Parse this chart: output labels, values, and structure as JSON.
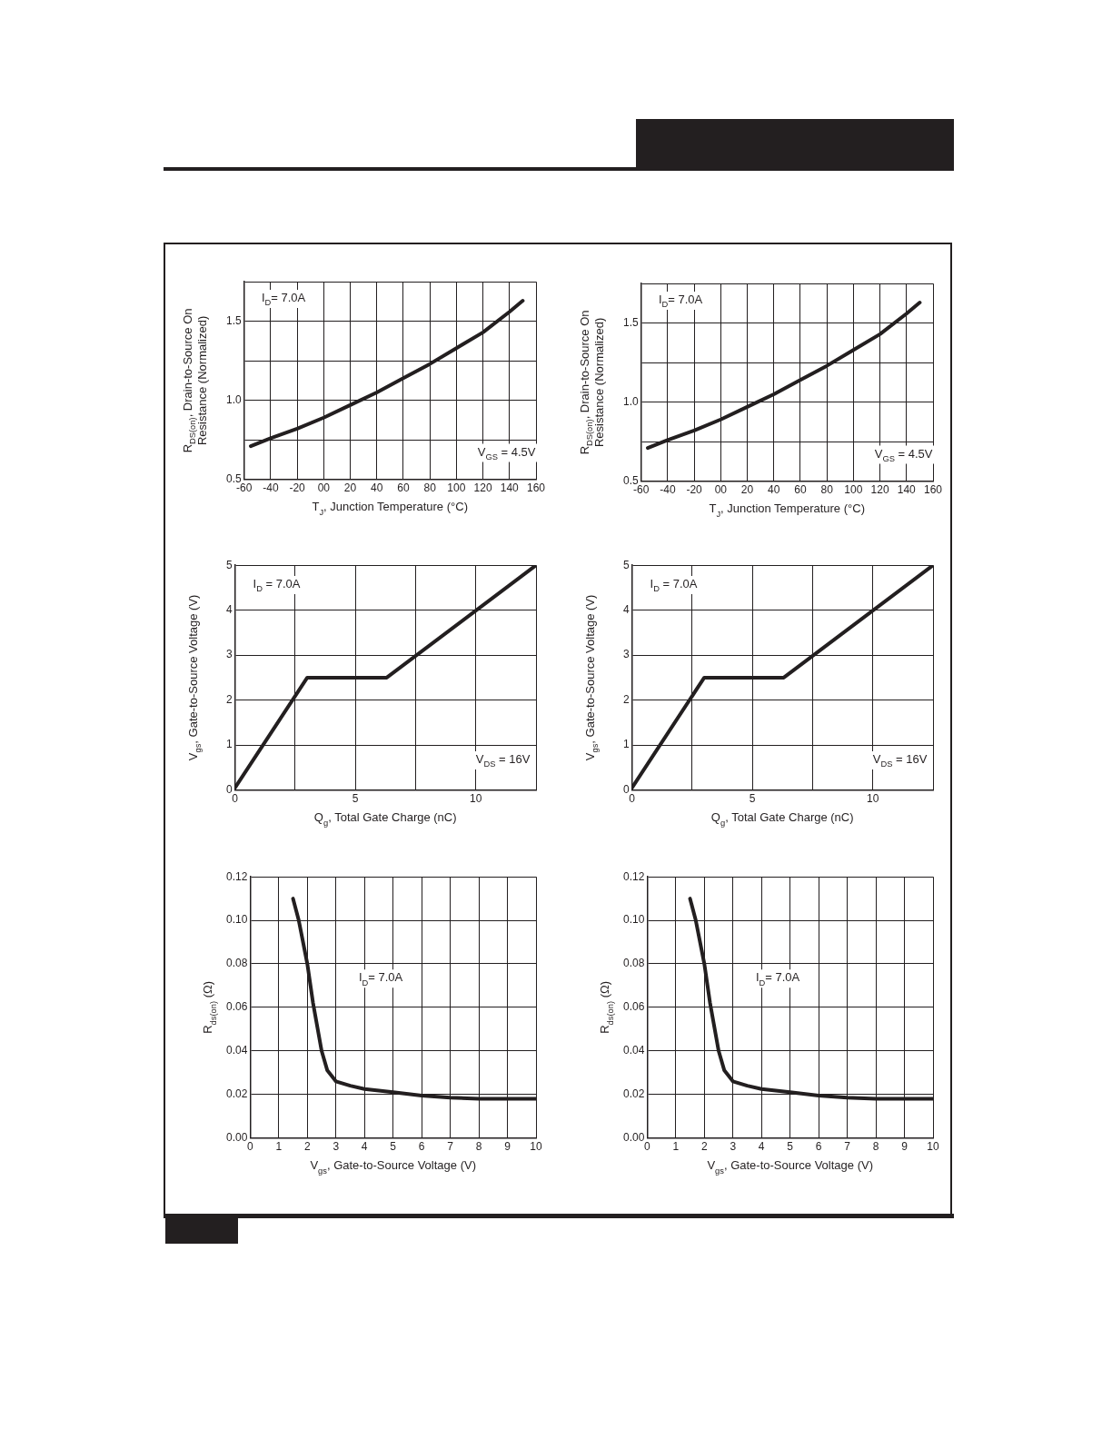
{
  "chart_data": [
    {
      "type": "line",
      "xlabel": "T$_{J}$, Junction Temperature (°C)",
      "ylabel": "R$_{DS(on)}$, Drain-to-Source On Resistance (Normalized)",
      "annotations": [
        "I$_{D}$= 7.0A",
        "V$_{GS}$ = 4.5V"
      ],
      "x": [
        -55,
        -40,
        -20,
        0,
        20,
        40,
        60,
        80,
        100,
        120,
        140,
        150
      ],
      "series": [
        {
          "color": "#231f20",
          "values": [
            0.71,
            0.76,
            0.82,
            0.89,
            0.97,
            1.05,
            1.14,
            1.23,
            1.33,
            1.43,
            1.56,
            1.63
          ]
        }
      ],
      "xlim": [
        -60,
        160
      ],
      "xticks": [
        -60,
        -40,
        -20,
        {
          "value": 0,
          "label": "00"
        },
        20,
        40,
        60,
        80,
        100,
        120,
        140,
        160
      ],
      "ylim": [
        0.5,
        1.75
      ],
      "yticks": [
        0.5,
        {
          "value": 0.75,
          "label": null
        },
        {
          "value": 1,
          "label": "1.0"
        },
        {
          "value": 1.25,
          "label": null
        },
        1.5,
        {
          "value": 1.75,
          "label": null
        }
      ],
      "grid": true
    },
    {
      "type": "line",
      "xlabel": "T$_{J}$, Junction Temperature (°C)",
      "ylabel": "R$_{DS(on)}$, Drain-to-Source On Resistance (Normalized)",
      "annotations": [
        "I$_{D}$= 7.0A",
        "V$_{GS}$ = 4.5V"
      ],
      "x": [
        -55,
        -40,
        -20,
        0,
        20,
        40,
        60,
        80,
        100,
        120,
        140,
        150
      ],
      "series": [
        {
          "color": "#231f20",
          "values": [
            0.71,
            0.76,
            0.82,
            0.89,
            0.97,
            1.05,
            1.14,
            1.23,
            1.33,
            1.43,
            1.56,
            1.63
          ]
        }
      ],
      "xlim": [
        -60,
        160
      ],
      "xticks": [
        -60,
        -40,
        -20,
        {
          "value": 0,
          "label": "00"
        },
        20,
        40,
        60,
        80,
        100,
        120,
        140,
        160
      ],
      "ylim": [
        0.5,
        1.75
      ],
      "yticks": [
        0.5,
        {
          "value": 0.75,
          "label": null
        },
        {
          "value": 1,
          "label": "1.0"
        },
        {
          "value": 1.25,
          "label": null
        },
        1.5,
        {
          "value": 1.75,
          "label": null
        }
      ],
      "grid": true
    },
    {
      "type": "line",
      "xlabel": "Q$_{g}$, Total Gate Charge (nC)",
      "ylabel": "V$_{gs}$, Gate-to-Source Voltage (V)",
      "annotations": [
        "I$_{D}$ = 7.0A",
        "V$_{DS}$ = 16V"
      ],
      "x": [
        0,
        3,
        6.3,
        12.5
      ],
      "series": [
        {
          "color": "#231f20",
          "values": [
            0.05,
            2.5,
            2.5,
            5
          ]
        }
      ],
      "xlim": [
        0,
        12.5
      ],
      "xticks": [
        0,
        {
          "value": 2.5,
          "label": null
        },
        5,
        {
          "value": 7.5,
          "label": null
        },
        10,
        {
          "value": 12.5,
          "label": null
        }
      ],
      "ylim": [
        0,
        5
      ],
      "yticks": [
        0,
        1,
        2,
        3,
        4,
        5
      ],
      "grid": true
    },
    {
      "type": "line",
      "xlabel": "Q$_{g}$, Total Gate Charge (nC)",
      "ylabel": "V$_{gs}$, Gate-to-Source Voltage (V)",
      "annotations": [
        "I$_{D}$ = 7.0A",
        "V$_{DS}$ = 16V"
      ],
      "x": [
        0,
        3,
        6.3,
        12.5
      ],
      "series": [
        {
          "color": "#231f20",
          "values": [
            0.05,
            2.5,
            2.5,
            5
          ]
        }
      ],
      "xlim": [
        0,
        12.5
      ],
      "xticks": [
        0,
        {
          "value": 2.5,
          "label": null
        },
        5,
        {
          "value": 7.5,
          "label": null
        },
        10,
        {
          "value": 12.5,
          "label": null
        }
      ],
      "ylim": [
        0,
        5
      ],
      "yticks": [
        0,
        1,
        2,
        3,
        4,
        5
      ],
      "grid": true
    },
    {
      "type": "line",
      "xlabel": "V$_{gs}$, Gate-to-Source Voltage (V)",
      "ylabel": "R$_{ds(on)}$ (Ω)",
      "annotations": [
        "I$_{D}$= 7.0A"
      ],
      "x": [
        1.5,
        1.7,
        2,
        2.2,
        2.5,
        2.7,
        3,
        3.5,
        4,
        5,
        6,
        7,
        8,
        9,
        10
      ],
      "series": [
        {
          "color": "#231f20",
          "values": [
            0.11,
            0.1,
            0.08,
            0.062,
            0.04,
            0.031,
            0.026,
            0.024,
            0.0225,
            0.021,
            0.0195,
            0.0185,
            0.018,
            0.018,
            0.018
          ]
        }
      ],
      "xlim": [
        0,
        10
      ],
      "xticks": [
        0,
        1,
        2,
        3,
        4,
        5,
        6,
        7,
        8,
        9,
        10
      ],
      "ylim": [
        0,
        0.12
      ],
      "yticks": [
        {
          "value": 0,
          "label": "0.00"
        },
        {
          "value": 0.02,
          "label": "0.02"
        },
        {
          "value": 0.04,
          "label": "0.04"
        },
        {
          "value": 0.06,
          "label": "0.06"
        },
        {
          "value": 0.08,
          "label": "0.08"
        },
        {
          "value": 0.1,
          "label": "0.10"
        },
        {
          "value": 0.12,
          "label": "0.12"
        }
      ],
      "grid": true
    },
    {
      "type": "line",
      "xlabel": "V$_{gs}$, Gate-to-Source Voltage (V)",
      "ylabel": "R$_{ds(on)}$ (Ω)",
      "annotations": [
        "I$_{D}$= 7.0A"
      ],
      "x": [
        1.5,
        1.7,
        2,
        2.2,
        2.5,
        2.7,
        3,
        3.5,
        4,
        5,
        6,
        7,
        8,
        9,
        10
      ],
      "series": [
        {
          "color": "#231f20",
          "values": [
            0.11,
            0.1,
            0.08,
            0.062,
            0.04,
            0.031,
            0.026,
            0.024,
            0.0225,
            0.021,
            0.0195,
            0.0185,
            0.018,
            0.018,
            0.018
          ]
        }
      ],
      "xlim": [
        0,
        10
      ],
      "xticks": [
        0,
        1,
        2,
        3,
        4,
        5,
        6,
        7,
        8,
        9,
        10
      ],
      "ylim": [
        0,
        0.12
      ],
      "yticks": [
        {
          "value": 0,
          "label": "0.00"
        },
        {
          "value": 0.02,
          "label": "0.02"
        },
        {
          "value": 0.04,
          "label": "0.04"
        },
        {
          "value": 0.06,
          "label": "0.06"
        },
        {
          "value": 0.08,
          "label": "0.08"
        },
        {
          "value": 0.1,
          "label": "0.10"
        },
        {
          "value": 0.12,
          "label": "0.12"
        }
      ],
      "grid": true
    }
  ]
}
